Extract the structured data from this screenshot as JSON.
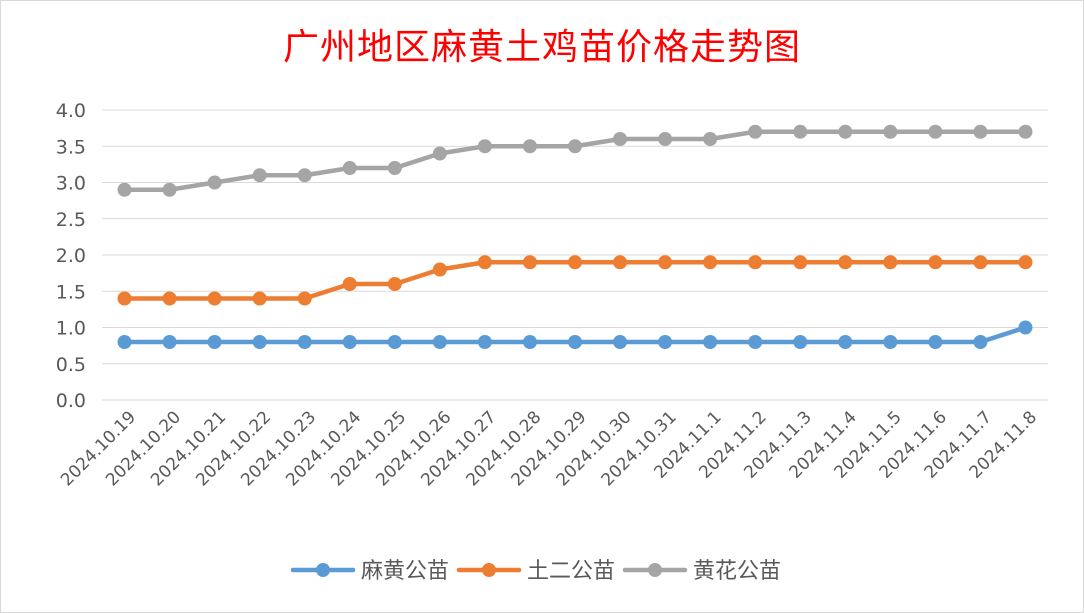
{
  "chart_data": {
    "type": "line",
    "title": "广州地区麻黄土鸡苗价格走势图",
    "xlabel": "",
    "ylabel": "",
    "ylim": [
      0,
      4.0
    ],
    "yticks": [
      "0.0",
      "0.5",
      "1.0",
      "1.5",
      "2.0",
      "2.5",
      "3.0",
      "3.5",
      "4.0"
    ],
    "grid": true,
    "legend_position": "bottom",
    "categories": [
      "2024.10.19",
      "2024.10.20",
      "2024.10.21",
      "2024.10.22",
      "2024.10.23",
      "2024.10.24",
      "2024.10.25",
      "2024.10.26",
      "2024.10.27",
      "2024.10.28",
      "2024.10.29",
      "2024.10.30",
      "2024.10.31",
      "2024.11.1",
      "2024.11.2",
      "2024.11.3",
      "2024.11.4",
      "2024.11.5",
      "2024.11.6",
      "2024.11.7",
      "2024.11.8"
    ],
    "series": [
      {
        "name": "麻黄公苗",
        "color": "#5b9bd5",
        "values": [
          0.8,
          0.8,
          0.8,
          0.8,
          0.8,
          0.8,
          0.8,
          0.8,
          0.8,
          0.8,
          0.8,
          0.8,
          0.8,
          0.8,
          0.8,
          0.8,
          0.8,
          0.8,
          0.8,
          0.8,
          1.0
        ]
      },
      {
        "name": "土二公苗",
        "color": "#ed7d31",
        "values": [
          1.4,
          1.4,
          1.4,
          1.4,
          1.4,
          1.6,
          1.6,
          1.8,
          1.9,
          1.9,
          1.9,
          1.9,
          1.9,
          1.9,
          1.9,
          1.9,
          1.9,
          1.9,
          1.9,
          1.9,
          1.9
        ]
      },
      {
        "name": "黄花公苗",
        "color": "#a5a5a5",
        "values": [
          2.9,
          2.9,
          3.0,
          3.1,
          3.1,
          3.2,
          3.2,
          3.4,
          3.5,
          3.5,
          3.5,
          3.6,
          3.6,
          3.6,
          3.7,
          3.7,
          3.7,
          3.7,
          3.7,
          3.7,
          3.7
        ]
      }
    ]
  }
}
